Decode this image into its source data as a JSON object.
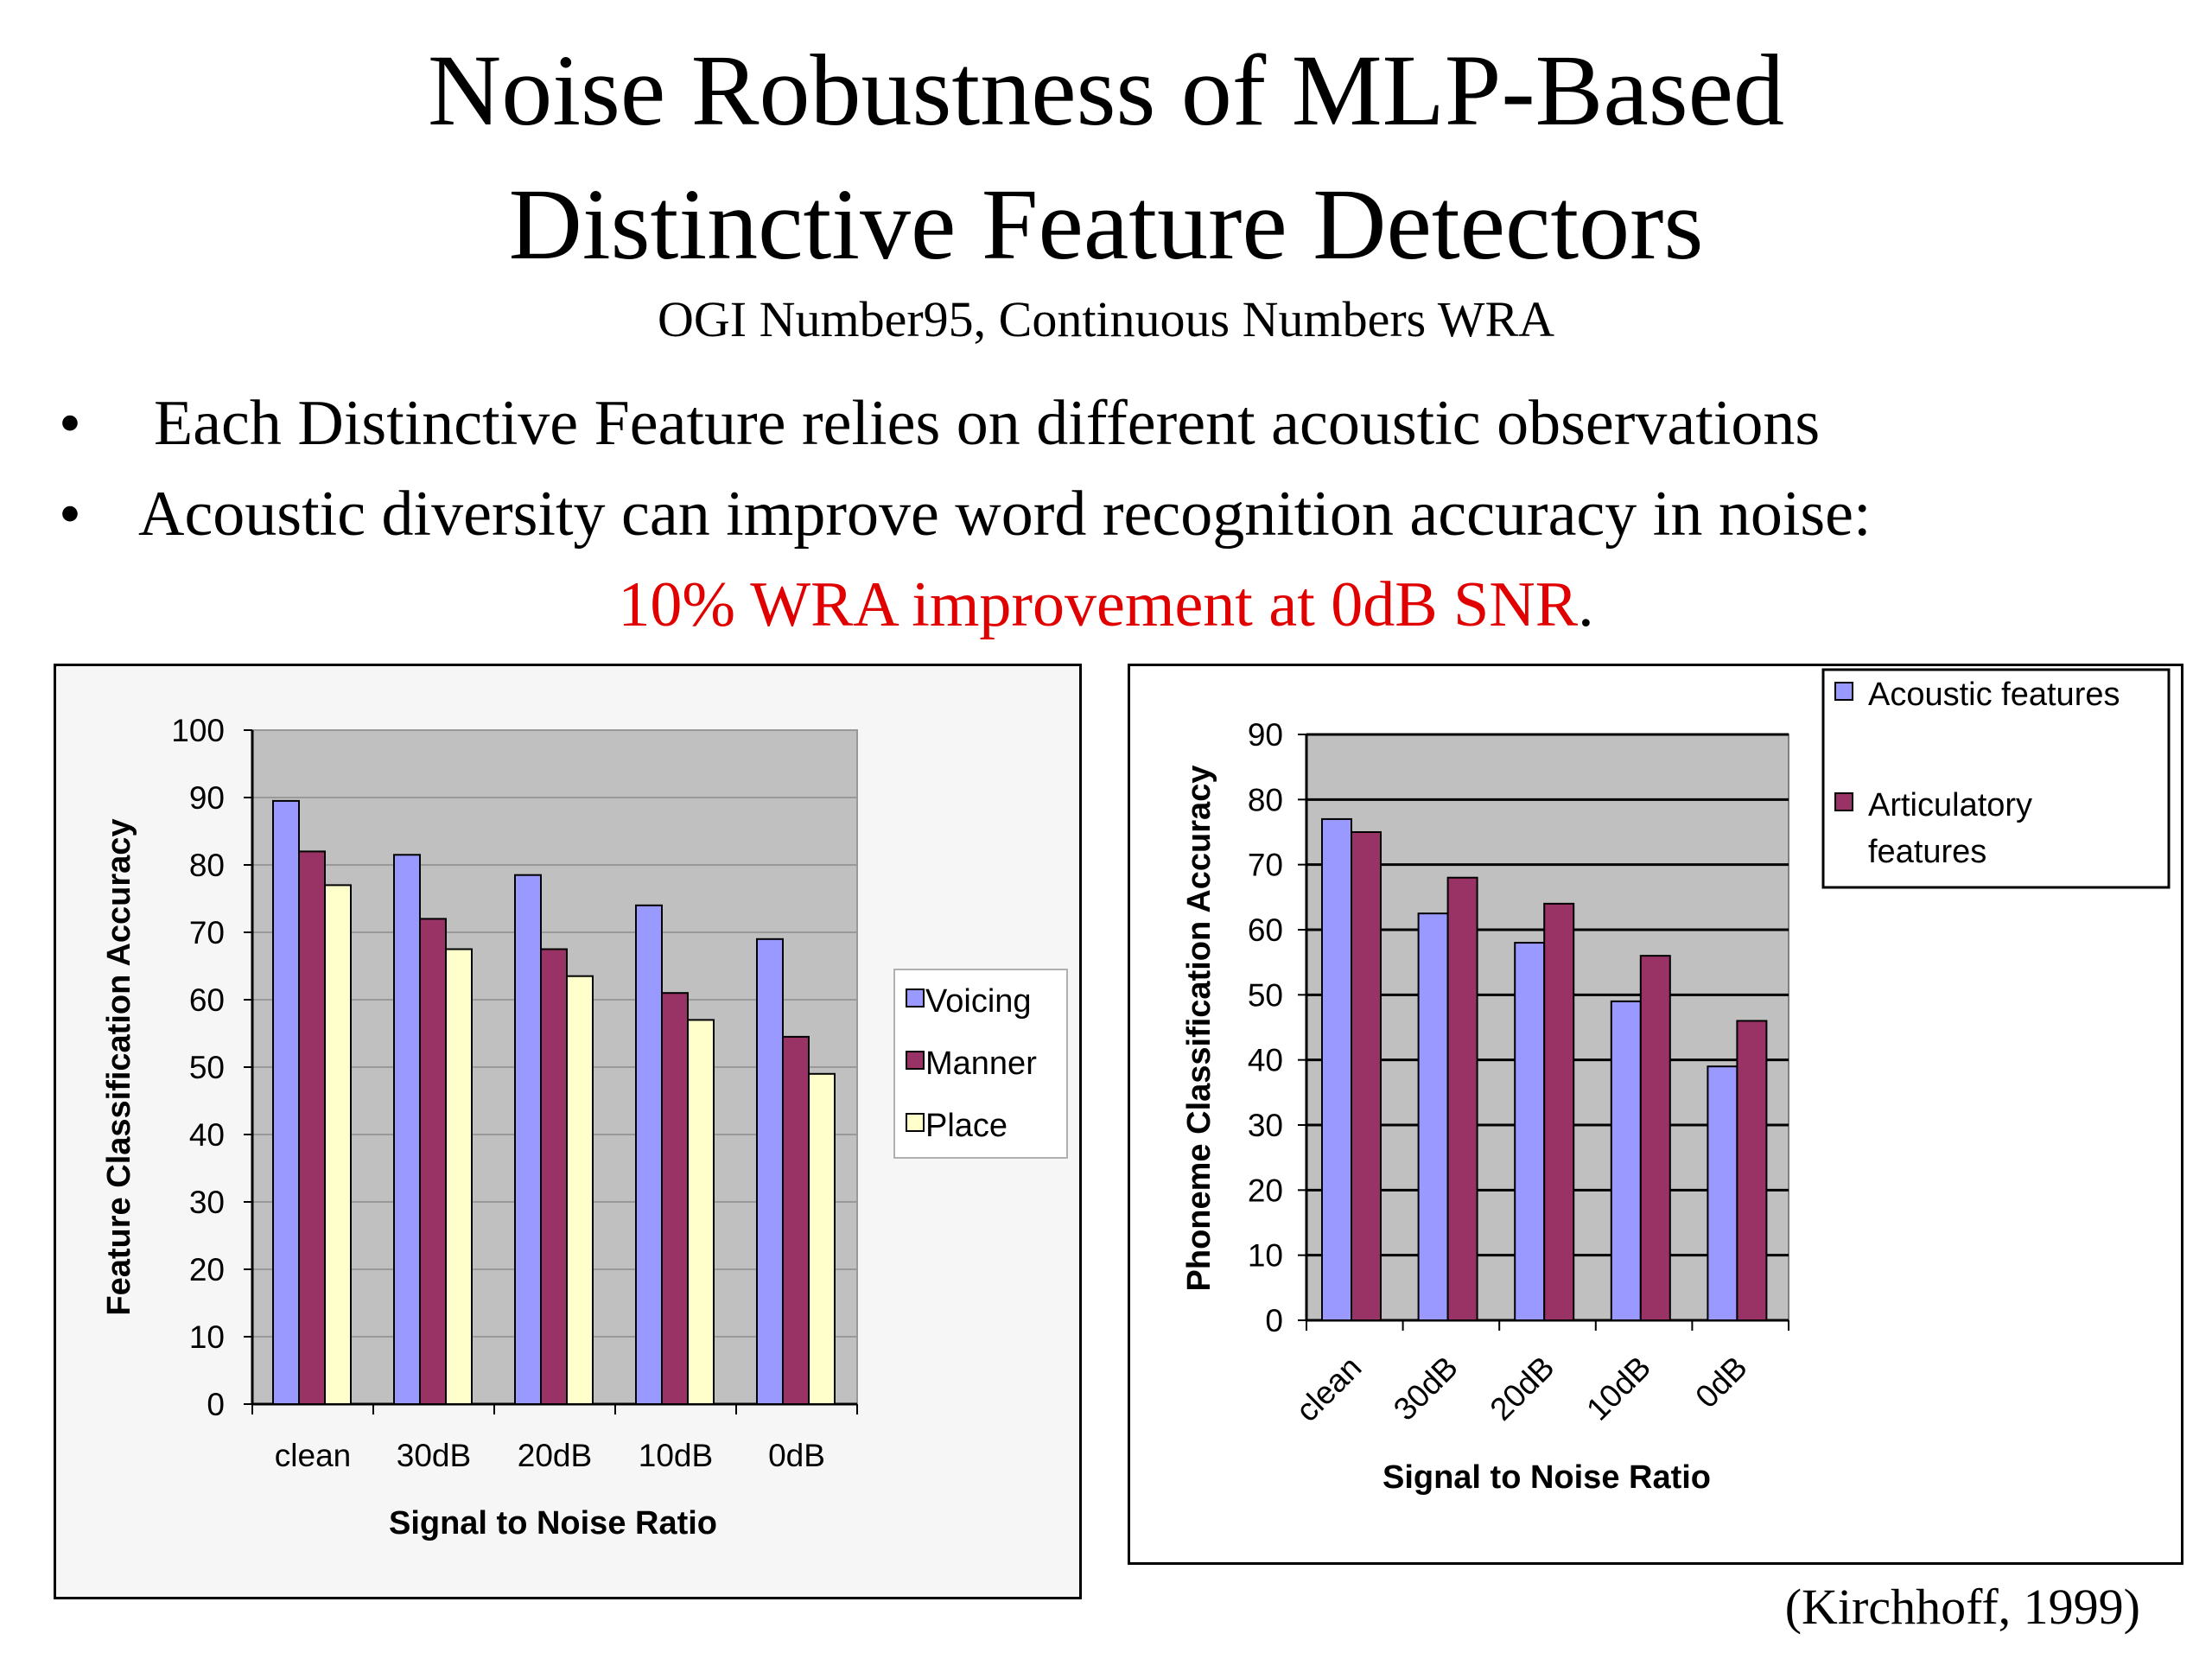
{
  "slide": {
    "title_line1": "Noise Robustness of MLP-Based",
    "title_line2": "Distinctive Feature Detectors",
    "subtitle": "OGI Number95, Continuous Numbers WRA",
    "bullets": [
      "Each Distinctive Feature relies on different acoustic observations",
      "Acoustic diversity can improve word recognition accuracy in noise:"
    ],
    "bullet_symbol": "•",
    "highlight": "10% WRA improvement at 0dB SNR",
    "highlight_suffix": ".",
    "citation": "(Kirchhoff, 1999)",
    "highlight_color": "#e00000"
  },
  "chart_data": [
    {
      "type": "bar",
      "xlabel": "Signal to Noise Ratio",
      "ylabel": "Feature Classification Accuracy",
      "categories": [
        "clean",
        "30dB",
        "20dB",
        "10dB",
        "0dB"
      ],
      "ylim": [
        0,
        100
      ],
      "yticks": [
        0,
        10,
        20,
        30,
        40,
        50,
        60,
        70,
        80,
        90,
        100
      ],
      "grid": true,
      "legend_position": "right",
      "plot_background": "#c0c0c0",
      "series": [
        {
          "name": "Voicing",
          "values": [
            89.5,
            81.5,
            78.5,
            74,
            69
          ],
          "color": "#9999ff"
        },
        {
          "name": "Manner",
          "values": [
            82,
            72,
            67.5,
            61,
            54.5
          ],
          "color": "#993366"
        },
        {
          "name": "Place",
          "values": [
            77,
            67.5,
            63.5,
            57,
            49
          ],
          "color": "#ffffcc"
        }
      ]
    },
    {
      "type": "bar",
      "xlabel": "Signal to Noise Ratio",
      "ylabel": "Phoneme Classification Accuracy",
      "categories": [
        "clean",
        "30dB",
        "20dB",
        "10dB",
        "0dB"
      ],
      "ylim": [
        0,
        90
      ],
      "yticks": [
        0,
        10,
        20,
        30,
        40,
        50,
        60,
        70,
        80,
        90
      ],
      "grid": true,
      "legend_position": "top-right",
      "plot_background": "#c0c0c0",
      "series": [
        {
          "name": "Acoustic features",
          "values": [
            77,
            62.5,
            58,
            49,
            39
          ],
          "color": "#9999ff"
        },
        {
          "name": "Articulatory features",
          "values": [
            75,
            68,
            64,
            56,
            46
          ],
          "color": "#993366"
        }
      ]
    }
  ]
}
